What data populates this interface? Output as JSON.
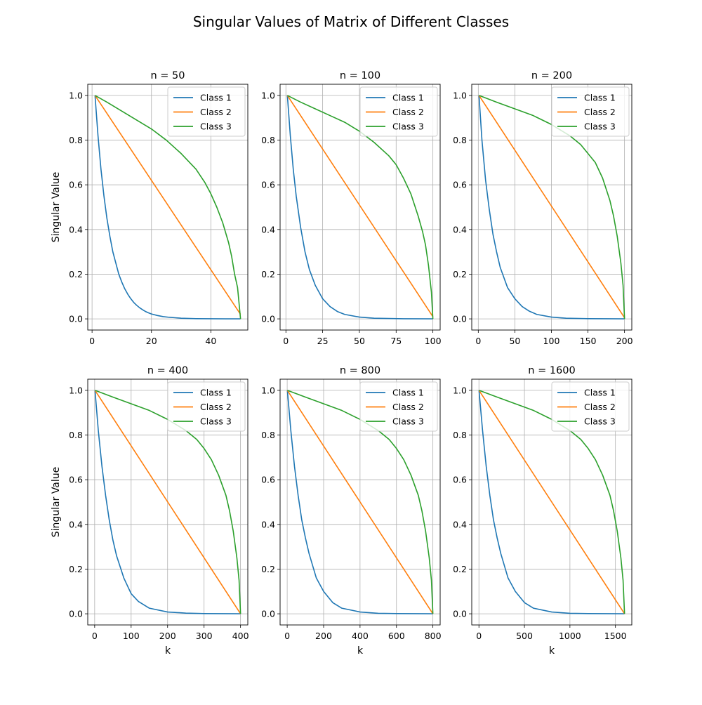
{
  "title": "Singular Values of Matrix of Different Classes",
  "colors": {
    "class1": "#1f77b4",
    "class2": "#ff7f0e",
    "class3": "#2ca02c",
    "grid": "#b0b0b0"
  },
  "legend_placement": "upper-right",
  "chart_data": [
    {
      "type": "line",
      "title": "n = 50",
      "n": 50,
      "ylabel": "Singular Value",
      "xlabel": "",
      "xlim": [
        -1.45,
        52.45
      ],
      "ylim": [
        -0.05,
        1.05
      ],
      "xticks": [
        0,
        20,
        40
      ],
      "yticks": [
        "0.0",
        "0.2",
        "0.4",
        "0.6",
        "0.8",
        "1.0"
      ],
      "series": [
        {
          "name": "Class 1",
          "x": [
            1,
            2,
            3,
            4,
            5,
            6,
            7,
            8,
            9,
            10,
            11,
            12,
            13,
            14,
            15,
            16,
            17,
            18,
            19,
            20,
            22,
            24,
            26,
            28,
            30,
            32,
            35,
            40,
            45,
            50
          ],
          "y": [
            1.0,
            0.82,
            0.67,
            0.55,
            0.45,
            0.37,
            0.3,
            0.25,
            0.2,
            0.165,
            0.135,
            0.111,
            0.091,
            0.074,
            0.061,
            0.05,
            0.041,
            0.033,
            0.027,
            0.022,
            0.015,
            0.01,
            0.007,
            0.005,
            0.003,
            0.002,
            0.001,
            0.0005,
            0.0002,
            0.0
          ]
        },
        {
          "name": "Class 2",
          "x": [
            1,
            50
          ],
          "y": [
            1.0,
            0.02
          ]
        },
        {
          "name": "Class 3",
          "x": [
            1,
            5,
            10,
            15,
            20,
            25,
            30,
            35,
            38,
            40,
            42,
            44,
            46,
            47,
            48,
            49,
            50
          ],
          "y": [
            1.0,
            0.97,
            0.93,
            0.89,
            0.85,
            0.8,
            0.74,
            0.67,
            0.61,
            0.56,
            0.5,
            0.43,
            0.34,
            0.28,
            0.2,
            0.14,
            0.0
          ]
        }
      ]
    },
    {
      "type": "line",
      "title": "n = 100",
      "n": 100,
      "ylabel": "",
      "xlabel": "",
      "xlim": [
        -3.95,
        104.95
      ],
      "ylim": [
        -0.05,
        1.05
      ],
      "xticks": [
        0,
        25,
        50,
        75,
        100
      ],
      "yticks": [
        "0.0",
        "0.2",
        "0.4",
        "0.6",
        "0.8",
        "1.0"
      ],
      "series": [
        {
          "name": "Class 1",
          "x": [
            1,
            3,
            5,
            7,
            10,
            13,
            16,
            20,
            25,
            30,
            35,
            40,
            50,
            60,
            80,
            100
          ],
          "y": [
            1.0,
            0.82,
            0.67,
            0.55,
            0.41,
            0.3,
            0.22,
            0.15,
            0.09,
            0.055,
            0.033,
            0.02,
            0.008,
            0.003,
            0.0005,
            0.0
          ]
        },
        {
          "name": "Class 2",
          "x": [
            1,
            100
          ],
          "y": [
            1.0,
            0.01
          ]
        },
        {
          "name": "Class 3",
          "x": [
            1,
            10,
            20,
            30,
            40,
            50,
            60,
            70,
            75,
            80,
            85,
            90,
            93,
            95,
            97,
            98,
            99,
            100
          ],
          "y": [
            1.0,
            0.97,
            0.94,
            0.91,
            0.88,
            0.84,
            0.79,
            0.73,
            0.69,
            0.63,
            0.56,
            0.46,
            0.39,
            0.33,
            0.24,
            0.18,
            0.12,
            0.0
          ]
        }
      ]
    },
    {
      "type": "line",
      "title": "n = 200",
      "n": 200,
      "ylabel": "",
      "xlabel": "",
      "xlim": [
        -8.95,
        209.95
      ],
      "ylim": [
        -0.05,
        1.05
      ],
      "xticks": [
        0,
        50,
        100,
        150,
        200
      ],
      "yticks": [
        "0.0",
        "0.2",
        "0.4",
        "0.6",
        "0.8",
        "1.0"
      ],
      "series": [
        {
          "name": "Class 1",
          "x": [
            1,
            5,
            10,
            15,
            20,
            25,
            30,
            40,
            50,
            60,
            70,
            80,
            100,
            120,
            150,
            200
          ],
          "y": [
            1.0,
            0.8,
            0.62,
            0.49,
            0.38,
            0.3,
            0.23,
            0.14,
            0.09,
            0.055,
            0.034,
            0.02,
            0.008,
            0.003,
            0.001,
            0.0
          ]
        },
        {
          "name": "Class 2",
          "x": [
            1,
            200
          ],
          "y": [
            1.0,
            0.005
          ]
        },
        {
          "name": "Class 3",
          "x": [
            1,
            25,
            50,
            75,
            100,
            125,
            140,
            150,
            160,
            170,
            180,
            185,
            190,
            195,
            198,
            200
          ],
          "y": [
            1.0,
            0.97,
            0.94,
            0.91,
            0.87,
            0.82,
            0.78,
            0.74,
            0.7,
            0.63,
            0.53,
            0.46,
            0.37,
            0.25,
            0.15,
            0.0
          ]
        }
      ]
    },
    {
      "type": "line",
      "title": "n = 400",
      "n": 400,
      "ylabel": "Singular Value",
      "xlabel": "k",
      "xlim": [
        -18.95,
        419.95
      ],
      "ylim": [
        -0.05,
        1.05
      ],
      "xticks": [
        0,
        100,
        200,
        300,
        400
      ],
      "yticks": [
        "0.0",
        "0.2",
        "0.4",
        "0.6",
        "0.8",
        "1.0"
      ],
      "series": [
        {
          "name": "Class 1",
          "x": [
            1,
            10,
            20,
            30,
            40,
            50,
            60,
            80,
            100,
            120,
            150,
            200,
            250,
            300,
            400
          ],
          "y": [
            1.0,
            0.82,
            0.66,
            0.53,
            0.42,
            0.33,
            0.26,
            0.16,
            0.09,
            0.055,
            0.025,
            0.008,
            0.003,
            0.001,
            0.0
          ]
        },
        {
          "name": "Class 2",
          "x": [
            1,
            400
          ],
          "y": [
            1.0,
            0.0
          ]
        },
        {
          "name": "Class 3",
          "x": [
            1,
            50,
            100,
            150,
            200,
            250,
            280,
            300,
            320,
            340,
            360,
            370,
            380,
            390,
            396,
            400
          ],
          "y": [
            1.0,
            0.97,
            0.94,
            0.91,
            0.87,
            0.82,
            0.78,
            0.74,
            0.69,
            0.62,
            0.53,
            0.46,
            0.37,
            0.25,
            0.15,
            0.0
          ]
        }
      ]
    },
    {
      "type": "line",
      "title": "n = 800",
      "n": 800,
      "ylabel": "",
      "xlabel": "k",
      "xlim": [
        -38.95,
        839.95
      ],
      "ylim": [
        -0.05,
        1.05
      ],
      "xticks": [
        0,
        200,
        400,
        600,
        800
      ],
      "yticks": [
        "0.0",
        "0.2",
        "0.4",
        "0.6",
        "0.8",
        "1.0"
      ],
      "series": [
        {
          "name": "Class 1",
          "x": [
            1,
            20,
            40,
            60,
            80,
            100,
            120,
            160,
            200,
            250,
            300,
            400,
            500,
            600,
            800
          ],
          "y": [
            1.0,
            0.82,
            0.66,
            0.53,
            0.42,
            0.34,
            0.27,
            0.16,
            0.1,
            0.05,
            0.025,
            0.008,
            0.002,
            0.001,
            0.0
          ]
        },
        {
          "name": "Class 2",
          "x": [
            1,
            800
          ],
          "y": [
            1.0,
            0.0
          ]
        },
        {
          "name": "Class 3",
          "x": [
            1,
            100,
            200,
            300,
            400,
            500,
            560,
            600,
            640,
            680,
            720,
            740,
            760,
            780,
            792,
            800
          ],
          "y": [
            1.0,
            0.97,
            0.94,
            0.91,
            0.87,
            0.82,
            0.78,
            0.74,
            0.69,
            0.62,
            0.53,
            0.46,
            0.37,
            0.25,
            0.15,
            0.0
          ]
        }
      ]
    },
    {
      "type": "line",
      "title": "n = 1600",
      "n": 1600,
      "ylabel": "",
      "xlabel": "k",
      "xlim": [
        -78.95,
        1679.95
      ],
      "ylim": [
        -0.05,
        1.05
      ],
      "xticks": [
        0,
        500,
        1000,
        1500
      ],
      "yticks": [
        "0.0",
        "0.2",
        "0.4",
        "0.6",
        "0.8",
        "1.0"
      ],
      "series": [
        {
          "name": "Class 1",
          "x": [
            1,
            40,
            80,
            120,
            160,
            200,
            240,
            320,
            400,
            500,
            600,
            800,
            1000,
            1200,
            1600
          ],
          "y": [
            1.0,
            0.82,
            0.66,
            0.53,
            0.42,
            0.34,
            0.27,
            0.16,
            0.1,
            0.05,
            0.025,
            0.008,
            0.002,
            0.001,
            0.0
          ]
        },
        {
          "name": "Class 2",
          "x": [
            1,
            1600
          ],
          "y": [
            1.0,
            0.0
          ]
        },
        {
          "name": "Class 3",
          "x": [
            1,
            200,
            400,
            600,
            800,
            1000,
            1120,
            1200,
            1280,
            1360,
            1440,
            1480,
            1520,
            1560,
            1584,
            1600
          ],
          "y": [
            1.0,
            0.97,
            0.94,
            0.91,
            0.87,
            0.82,
            0.78,
            0.74,
            0.69,
            0.62,
            0.53,
            0.46,
            0.37,
            0.25,
            0.15,
            0.0
          ]
        }
      ]
    }
  ]
}
